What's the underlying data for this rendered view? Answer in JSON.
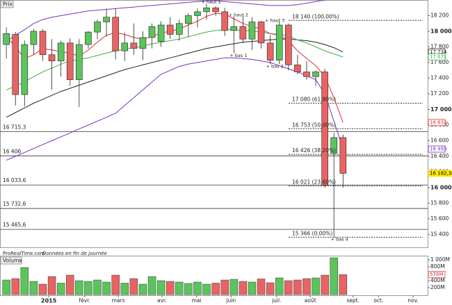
{
  "chart_data": [
    {
      "type": "candlestick",
      "title": "Prix",
      "source": "ProRealTime.com",
      "subtitle": "Données en fin de journée",
      "categories": [
        null,
        null,
        null,
        null,
        null,
        null,
        null,
        null,
        null,
        null,
        null,
        null,
        null,
        null,
        null,
        null,
        null,
        null,
        null,
        null,
        null,
        null,
        null,
        null,
        null,
        null,
        null,
        null,
        null,
        null,
        null,
        null,
        null,
        null,
        null,
        null,
        null,
        null
      ],
      "open": [
        17830,
        17960,
        17190,
        17830,
        18000,
        17700,
        17620,
        17850,
        17380,
        17830,
        17990,
        18120,
        18180,
        17750,
        17850,
        17780,
        17920,
        17870,
        18080,
        17960,
        18100,
        18200,
        18250,
        18300,
        18250,
        18010,
        18060,
        17900,
        18120,
        17850,
        17630,
        18080,
        17570,
        17480,
        17420,
        17480,
        16440,
        16640
      ],
      "high": [
        18050,
        17990,
        17880,
        18030,
        18030,
        17900,
        17880,
        17910,
        17900,
        18000,
        18150,
        18290,
        18290,
        17980,
        18100,
        18000,
        18100,
        18130,
        18180,
        18150,
        18230,
        18290,
        18350,
        18320,
        18300,
        18190,
        18190,
        18180,
        18130,
        17950,
        18120,
        18100,
        17700,
        17620,
        17500,
        17520,
        16700,
        16680
      ],
      "low": [
        17650,
        17050,
        17040,
        17700,
        17620,
        17250,
        17420,
        17300,
        17030,
        17780,
        17900,
        17930,
        17640,
        17620,
        17700,
        17630,
        17780,
        17800,
        17900,
        17880,
        17930,
        18050,
        18150,
        18200,
        17940,
        17720,
        17850,
        17760,
        17780,
        17580,
        17580,
        17500,
        17450,
        17380,
        17300,
        16000,
        15366,
        16000
      ],
      "close": [
        17970,
        17190,
        17830,
        18000,
        17700,
        17620,
        17850,
        17380,
        17830,
        17990,
        18120,
        18180,
        17750,
        17850,
        17780,
        17920,
        18060,
        18080,
        17960,
        18100,
        18200,
        18250,
        18300,
        18250,
        18010,
        18060,
        17900,
        18120,
        17850,
        17630,
        18080,
        17570,
        17480,
        17420,
        17480,
        16030,
        16640,
        16182.38
      ],
      "lines": [
        {
          "color": "#7b2fbf",
          "values": [
            17870,
            17950,
            18020,
            18100,
            18150,
            18180,
            18200,
            18220,
            18240,
            18260,
            18270,
            18280,
            18290,
            18300,
            18310,
            18320,
            18330,
            18340,
            18350,
            18360,
            18370,
            18380,
            18390,
            18390,
            18380,
            18370,
            18360,
            18350,
            18340,
            18330,
            18330,
            18330,
            18340,
            18360,
            18380,
            18400,
            18430,
            18450
          ]
        },
        {
          "color": "#7b2fbf",
          "values": [
            16350,
            16400,
            16450,
            16500,
            16550,
            16600,
            16650,
            16700,
            16750,
            16800,
            16850,
            16900,
            16950,
            17050,
            17150,
            17250,
            17350,
            17450,
            17500,
            17550,
            17580,
            17600,
            17620,
            17640,
            17660,
            17660,
            17650,
            17640,
            17620,
            17600,
            17560,
            17520,
            17480,
            17430,
            17380,
            17200,
            16850,
            16493
          ]
        },
        {
          "color": "#222222",
          "values": [
            16900,
            16960,
            17020,
            17080,
            17130,
            17180,
            17230,
            17270,
            17310,
            17350,
            17390,
            17430,
            17470,
            17510,
            17540,
            17570,
            17600,
            17630,
            17660,
            17690,
            17720,
            17750,
            17780,
            17800,
            17820,
            17840,
            17860,
            17870,
            17880,
            17890,
            17900,
            17900,
            17890,
            17880,
            17860,
            17830,
            17790,
            17734
          ]
        },
        {
          "color": "#3cb043",
          "values": [
            17250,
            17300,
            17350,
            17420,
            17480,
            17530,
            17580,
            17620,
            17640,
            17660,
            17690,
            17720,
            17750,
            17770,
            17790,
            17810,
            17840,
            17860,
            17880,
            17900,
            17930,
            17960,
            17990,
            18010,
            18020,
            18020,
            18010,
            18000,
            17990,
            17970,
            17960,
            17940,
            17890,
            17850,
            17800,
            17750,
            17710,
            17671
          ]
        },
        {
          "color": "#e03030",
          "values": [
            17930,
            17800,
            17650,
            17700,
            17780,
            17760,
            17740,
            17720,
            17680,
            17760,
            17860,
            17950,
            17980,
            17960,
            17920,
            17900,
            17930,
            17980,
            18000,
            18030,
            18080,
            18130,
            18190,
            18230,
            18220,
            18160,
            18100,
            18060,
            18030,
            17970,
            17950,
            17880,
            17750,
            17650,
            17560,
            17420,
            17150,
            16832
          ]
        }
      ],
      "levels": [
        {
          "value": 16715.3,
          "label": "16 715,3"
        },
        {
          "value": 16406,
          "label": "16 406"
        },
        {
          "value": 16033.6,
          "label": "16 033,6"
        },
        {
          "value": 15732.6,
          "label": "15 732,6"
        },
        {
          "value": 15465.6,
          "label": "15 465,6"
        }
      ],
      "fibonacci": [
        {
          "value": 18140,
          "label": "18 140 (100,00%)"
        },
        {
          "value": 17080,
          "label": "17 080 (61,80%)"
        },
        {
          "value": 16753,
          "label": "16 753 (50,00%)"
        },
        {
          "value": 16426,
          "label": "16 426 (38,20%)"
        },
        {
          "value": 16021,
          "label": "16 021 (23,60%)"
        },
        {
          "value": 15366,
          "label": "15 366 (0,00%)"
        }
      ],
      "annotations": [
        "+ haut 1",
        "+ haut 2",
        "+ haut 3",
        "+ bas 1",
        "+ bas 2",
        "+ bas 4"
      ],
      "markers": [
        {
          "value": 17734,
          "label": "17 734",
          "color": "#222222"
        },
        {
          "value": 17671,
          "label": "17 671",
          "color": "#3cb043"
        },
        {
          "value": 16832,
          "label": "16 832",
          "color": "#e03030"
        },
        {
          "value": 16493,
          "label": "16 493",
          "color": "#7b2fbf"
        },
        {
          "value": 16182.38,
          "label": "16 182,38",
          "color": "#ffe600"
        }
      ],
      "colors": {
        "up": "#5cc45c",
        "down": "#e86464"
      },
      "xlim": [
        -0.7,
        46.3
      ],
      "ylim": [
        15240,
        18400
      ],
      "yticks": [
        {
          "value": 18200,
          "label": "18 200"
        },
        {
          "value": 18000,
          "label": "18 000"
        },
        {
          "value": 17800,
          "label": "17 800"
        },
        {
          "value": 17600,
          "label": "17 600"
        },
        {
          "value": 17400,
          "label": "17 400"
        },
        {
          "value": 17200,
          "label": "17 200"
        },
        {
          "value": 17000,
          "label": "17 000"
        },
        {
          "value": 16800,
          "label": "16 800"
        },
        {
          "value": 16600,
          "label": "16 600"
        },
        {
          "value": 16400,
          "label": "16 400"
        },
        {
          "value": 16200,
          "label": "16 200"
        },
        {
          "value": 16000,
          "label": "16 000"
        },
        {
          "value": 15800,
          "label": "15 800"
        },
        {
          "value": 15600,
          "label": "15 600"
        },
        {
          "value": 15400,
          "label": "15 400"
        }
      ]
    },
    {
      "type": "bar",
      "title": "Volume",
      "categories": [
        null,
        null,
        null,
        null,
        null,
        null,
        null,
        null,
        null,
        null,
        null,
        null,
        null,
        null,
        null,
        null,
        null,
        null,
        null,
        null,
        null,
        null,
        null,
        null,
        null,
        null,
        null,
        null,
        null,
        null,
        null,
        null,
        null,
        null,
        null,
        null,
        null,
        null
      ],
      "values": [
        420,
        460,
        780,
        380,
        300,
        520,
        330,
        560,
        400,
        380,
        420,
        360,
        560,
        330,
        460,
        300,
        520,
        400,
        380,
        360,
        320,
        360,
        300,
        330,
        420,
        440,
        380,
        360,
        450,
        340,
        480,
        400,
        420,
        460,
        480,
        560,
        1060,
        576
      ],
      "marker": {
        "value": 576,
        "label": "576M"
      },
      "xlim": [
        -0.7,
        46.3
      ],
      "ylim": [
        0,
        1120
      ],
      "yticks": [
        {
          "value": 1000,
          "label": "1 000M"
        },
        {
          "value": 800,
          "label": "800M"
        },
        {
          "value": 600,
          "label": "600M"
        },
        {
          "value": 400,
          "label": "400M"
        },
        {
          "value": 200,
          "label": "200M"
        }
      ],
      "xticks": [
        {
          "value": 4.66,
          "label": "2015"
        },
        {
          "value": 8.6,
          "label": "févr."
        },
        {
          "value": 12.3,
          "label": "mars"
        },
        {
          "value": 17.1,
          "label": "avr."
        },
        {
          "value": 20.9,
          "label": "mai"
        },
        {
          "value": 24.7,
          "label": "juin"
        },
        {
          "value": 29.7,
          "label": "juil."
        },
        {
          "value": 33.4,
          "label": "août"
        },
        {
          "value": 38.1,
          "label": "sept."
        },
        {
          "value": 40.9,
          "label": "oct."
        },
        {
          "value": 44.7,
          "label": "nov."
        }
      ]
    }
  ]
}
